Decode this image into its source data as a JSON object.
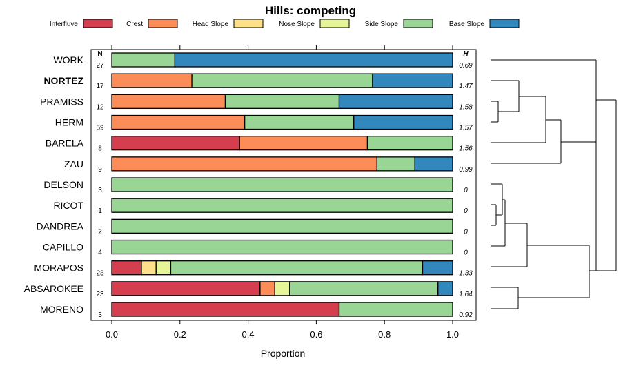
{
  "chart_data": {
    "type": "bar",
    "stacked": true,
    "orientation": "horizontal",
    "title": "Hills: competing",
    "xlabel": "Proportion",
    "ylabel": "",
    "xlim": [
      0,
      1
    ],
    "x_ticks": [
      "0.0",
      "0.2",
      "0.4",
      "0.6",
      "0.8",
      "1.0"
    ],
    "n_header": "N",
    "h_header": "H",
    "legend_position": "top",
    "series": [
      {
        "name": "Interfluve",
        "color": "#d53e4f"
      },
      {
        "name": "Crest",
        "color": "#fc8d59"
      },
      {
        "name": "Head Slope",
        "color": "#fee08b"
      },
      {
        "name": "Nose Slope",
        "color": "#e6f598"
      },
      {
        "name": "Side Slope",
        "color": "#99d594"
      },
      {
        "name": "Base Slope",
        "color": "#3288bd"
      }
    ],
    "categories": [
      {
        "label": "WORK",
        "bold": false,
        "n": "27",
        "h": "0.69",
        "values": [
          0,
          0,
          0,
          0,
          0.185,
          0.815
        ]
      },
      {
        "label": "NORTEZ",
        "bold": true,
        "n": "17",
        "h": "1.47",
        "values": [
          0,
          0.235,
          0,
          0,
          0.53,
          0.235
        ]
      },
      {
        "label": "PRAMISS",
        "bold": false,
        "n": "12",
        "h": "1.58",
        "values": [
          0,
          0.333,
          0,
          0,
          0.334,
          0.333
        ]
      },
      {
        "label": "HERM",
        "bold": false,
        "n": "59",
        "h": "1.57",
        "values": [
          0,
          0.39,
          0,
          0,
          0.32,
          0.29
        ]
      },
      {
        "label": "BARELA",
        "bold": false,
        "n": "8",
        "h": "1.56",
        "values": [
          0.375,
          0.375,
          0,
          0,
          0.25,
          0
        ]
      },
      {
        "label": "ZAU",
        "bold": false,
        "n": "9",
        "h": "0.99",
        "values": [
          0,
          0.778,
          0,
          0,
          0.111,
          0.111
        ]
      },
      {
        "label": "DELSON",
        "bold": false,
        "n": "3",
        "h": "0",
        "values": [
          0,
          0,
          0,
          0,
          1,
          0
        ]
      },
      {
        "label": "RICOT",
        "bold": false,
        "n": "1",
        "h": "0",
        "values": [
          0,
          0,
          0,
          0,
          1,
          0
        ]
      },
      {
        "label": "DANDREA",
        "bold": false,
        "n": "2",
        "h": "0",
        "values": [
          0,
          0,
          0,
          0,
          1,
          0
        ]
      },
      {
        "label": "CAPILLO",
        "bold": false,
        "n": "4",
        "h": "0",
        "values": [
          0,
          0,
          0,
          0,
          1,
          0
        ]
      },
      {
        "label": "MORAPOS",
        "bold": false,
        "n": "23",
        "h": "1.33",
        "values": [
          0.087,
          0,
          0.043,
          0.043,
          0.739,
          0.088
        ]
      },
      {
        "label": "ABSAROKEE",
        "bold": false,
        "n": "23",
        "h": "1.64",
        "values": [
          0.435,
          0.043,
          0,
          0.044,
          0.435,
          0.043
        ]
      },
      {
        "label": "MORENO",
        "bold": false,
        "n": "3",
        "h": "0.92",
        "values": [
          0.667,
          0,
          0,
          0,
          0.333,
          0
        ]
      }
    ]
  }
}
